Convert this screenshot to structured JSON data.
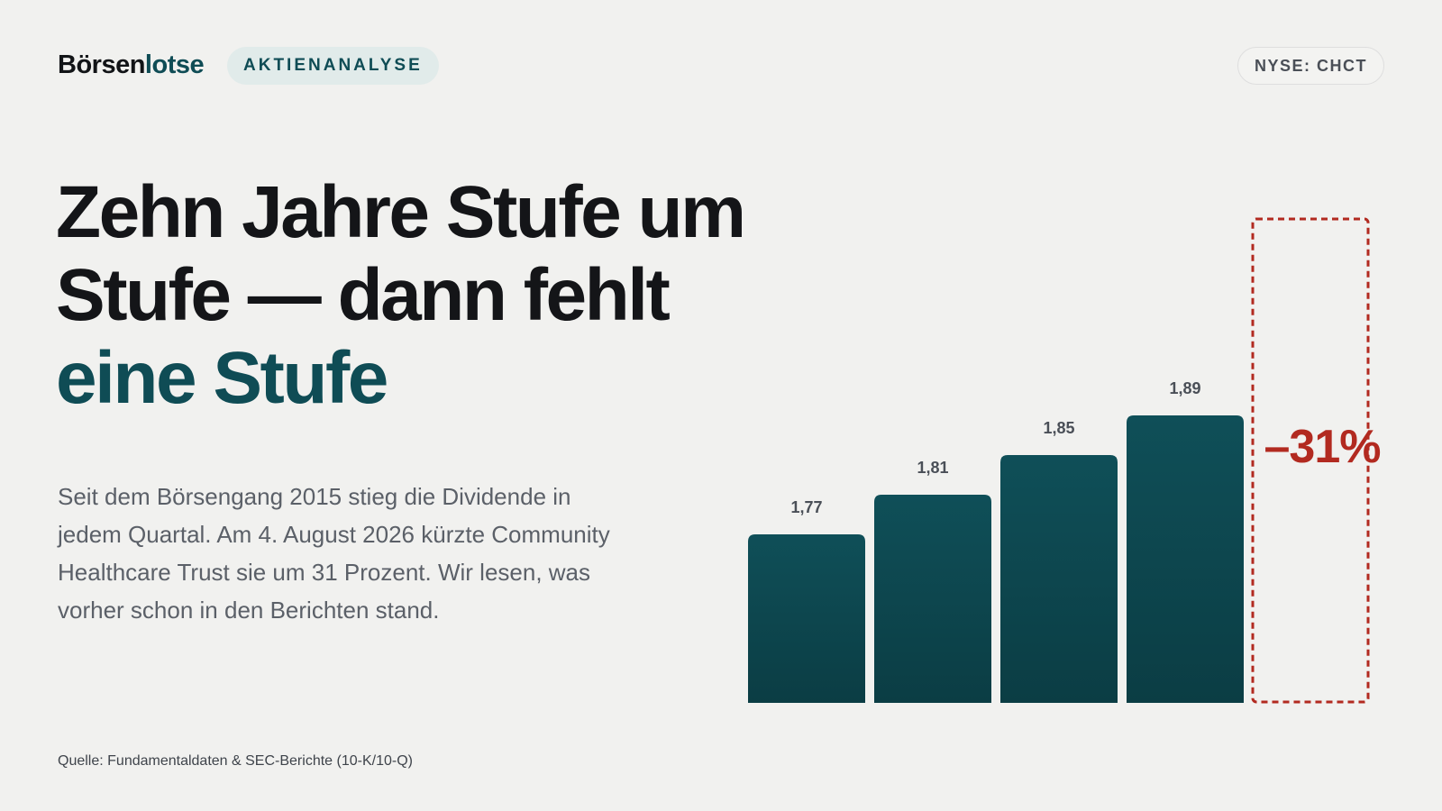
{
  "brand": {
    "part1": "Börsen",
    "part2": "lotse"
  },
  "tag": "AKTIENANALYSE",
  "ticker": "NYSE: CHCT",
  "headline": {
    "line1": "Zehn Jahre Stufe um",
    "line2": "Stufe — dann fehlt",
    "line3": "eine Stufe"
  },
  "lead": "Seit dem Börsengang 2015 stieg die Dividende in jedem Quartal. Am 4. August 2026 kürzte Community Healthcare Trust sie um 31 Prozent. Wir lesen, was vorher schon in den Berichten stand.",
  "source": "Quelle: Fundamentaldaten & SEC-Berichte (10-K/10-Q)",
  "colors": {
    "accent": "#0f4c55",
    "bar_top": "#0f4f58",
    "bar_bottom": "#0b3d44",
    "cut": "#b22a20",
    "label": "#4a4f57"
  },
  "chart_data": {
    "type": "bar",
    "values": [
      1.77,
      1.81,
      1.85,
      1.89
    ],
    "value_labels": [
      "1,77",
      "1,81",
      "1,85",
      "1,89"
    ],
    "missing_bar": {
      "label": "–31%"
    },
    "grid": false,
    "legend": "none"
  }
}
